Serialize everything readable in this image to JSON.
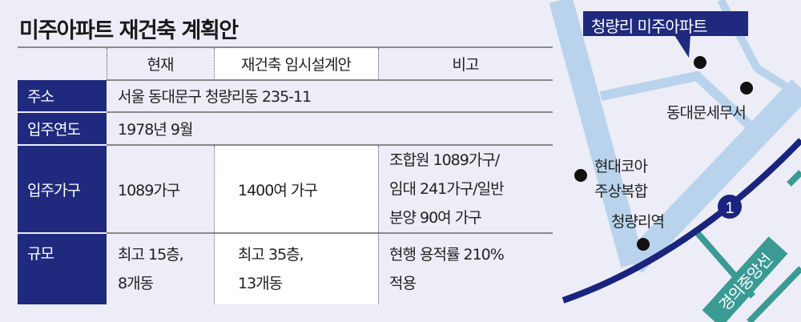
{
  "title": "미주아파트 재건축 계획안",
  "table": {
    "headers": [
      "",
      "현재",
      "재건축 임시설계안",
      "비고"
    ],
    "rows": [
      {
        "label": "주소",
        "value": "서울 동대문구 청량리동 235-11"
      },
      {
        "label": "입주연도",
        "value": "1978년 9월"
      },
      {
        "label": "입주가구",
        "current": "1089가구",
        "plan": "1400여 가구",
        "note": [
          "조합원 1089가구/",
          "임대 241가구/일반",
          "분양 90여 가구"
        ]
      },
      {
        "label": "규모",
        "current": [
          "최고 15층,",
          "8개동"
        ],
        "plan": [
          "최고 35층,",
          "13개동"
        ],
        "note": [
          "현행 용적률 210%",
          "적용"
        ]
      }
    ]
  },
  "map": {
    "callout": "청량리 미주아파트",
    "places": [
      "동대문세무서",
      "현대코아",
      "주상복합",
      "청량리역"
    ],
    "line1_badge": "1",
    "line_name": "경의중앙선",
    "colors": {
      "road": "#b9d3ec",
      "line1": "#1a237e",
      "gyeongui": "#3a9a94",
      "label_bg": "#1f2a7e"
    }
  }
}
